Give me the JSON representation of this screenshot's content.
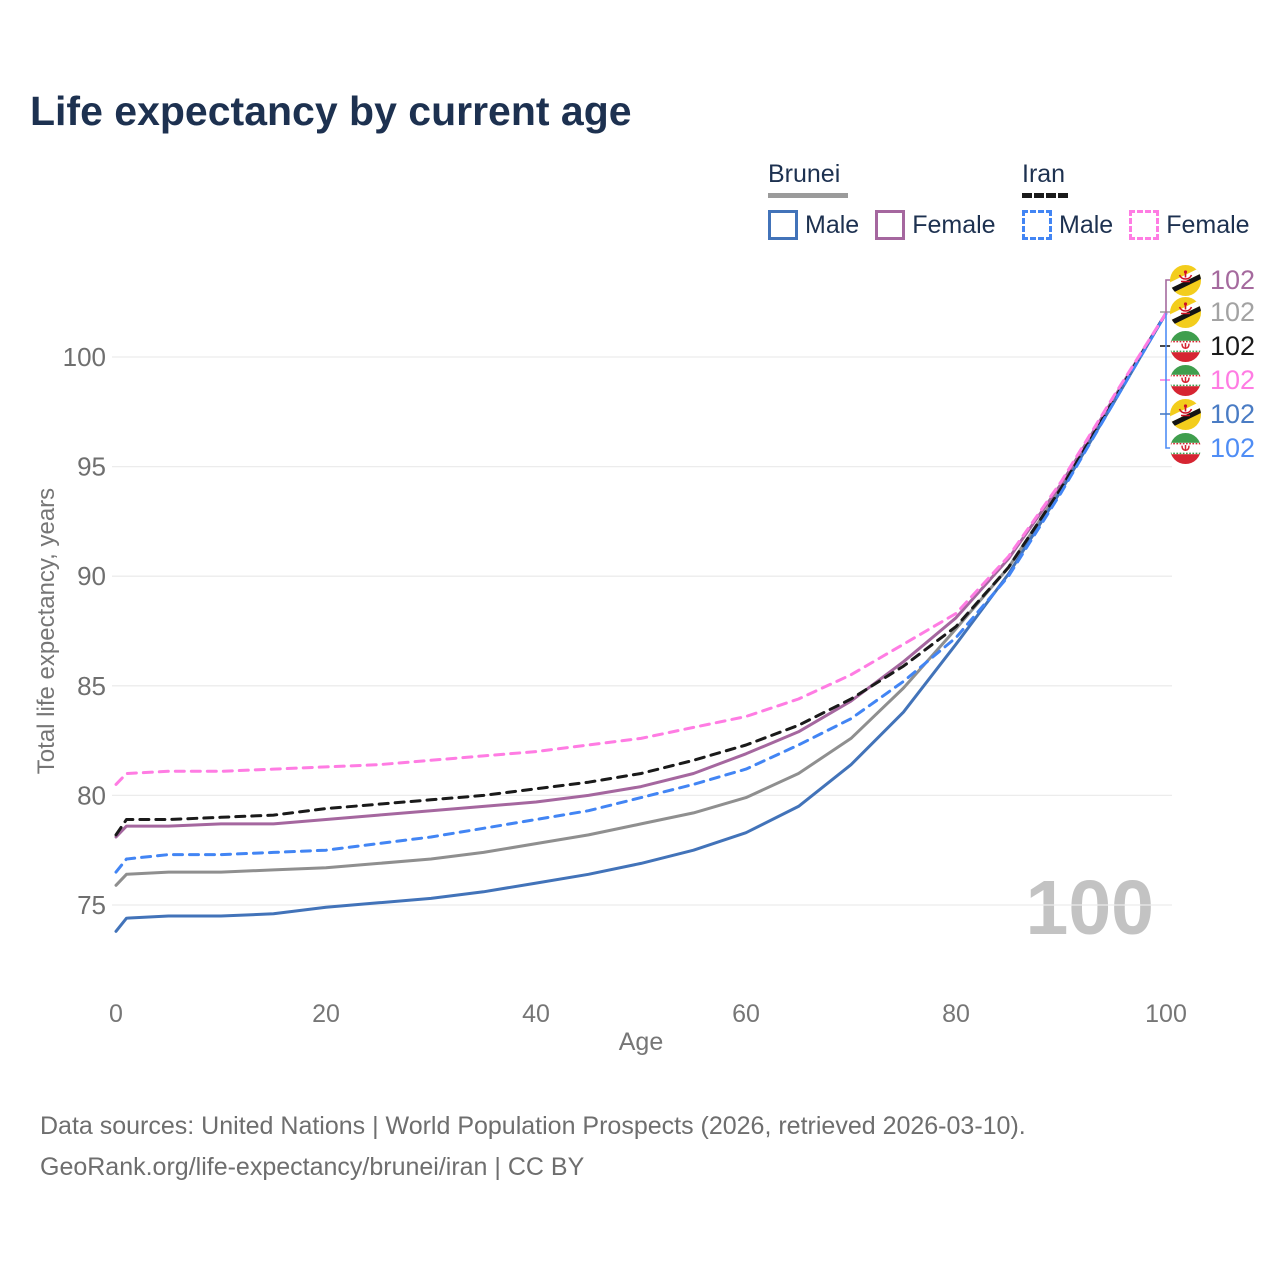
{
  "title": "Life expectancy by current age",
  "legend": {
    "groups": [
      {
        "label": "Brunei",
        "line_style": "solid",
        "underline_color": "#9b9b9b",
        "items": [
          {
            "label": "Male",
            "color": "#4273b9",
            "dashed": false
          },
          {
            "label": "Female",
            "color": "#a5679f",
            "dashed": false
          }
        ]
      },
      {
        "label": "Iran",
        "line_style": "dashed",
        "underline_color": "#1a1a1a",
        "items": [
          {
            "label": "Male",
            "color": "#4285f4",
            "dashed": true
          },
          {
            "label": "Female",
            "color": "#ff7ce3",
            "dashed": true
          }
        ]
      }
    ]
  },
  "watermark": "100",
  "right_labels": [
    {
      "flag": "brunei",
      "value": "102",
      "color": "#a56a9e"
    },
    {
      "flag": "brunei",
      "value": "102",
      "color": "#a3a3a3"
    },
    {
      "flag": "iran",
      "value": "102",
      "color": "#1a1a1a"
    },
    {
      "flag": "iran",
      "value": "102",
      "color": "#ff7ce3"
    },
    {
      "flag": "brunei",
      "value": "102",
      "color": "#4a7cc4"
    },
    {
      "flag": "iran",
      "value": "102",
      "color": "#4f8df5"
    }
  ],
  "chart_data": {
    "type": "line",
    "title": "Life expectancy by current age",
    "xlabel": "Age",
    "ylabel": "Total life expectancy, years",
    "xlim": [
      0,
      100
    ],
    "ylim": [
      73,
      103
    ],
    "xticks": [
      0,
      20,
      40,
      60,
      80,
      100
    ],
    "yticks": [
      75,
      80,
      85,
      90,
      95,
      100
    ],
    "grid": "horizontal",
    "legend_position": "top-right",
    "x": [
      0,
      1,
      5,
      10,
      15,
      20,
      25,
      30,
      35,
      40,
      45,
      50,
      55,
      60,
      65,
      70,
      75,
      80,
      85,
      90,
      95,
      100
    ],
    "series": [
      {
        "name": "Brunei All",
        "country": "Brunei",
        "sex": "all",
        "line": "solid",
        "color": "#8f8f8f",
        "values": [
          75.9,
          76.4,
          76.5,
          76.5,
          76.6,
          76.7,
          76.9,
          77.1,
          77.4,
          77.8,
          78.2,
          78.7,
          79.2,
          79.9,
          81.0,
          82.6,
          84.9,
          87.6,
          90.4,
          94.0,
          98.0,
          102
        ]
      },
      {
        "name": "Brunei Female",
        "country": "Brunei",
        "sex": "female",
        "line": "solid",
        "color": "#a5679f",
        "values": [
          78.1,
          78.6,
          78.6,
          78.7,
          78.7,
          78.9,
          79.1,
          79.3,
          79.5,
          79.7,
          80.0,
          80.4,
          81.0,
          81.9,
          82.9,
          84.3,
          86.1,
          88.1,
          90.8,
          94.2,
          98.1,
          102
        ]
      },
      {
        "name": "Brunei Male",
        "country": "Brunei",
        "sex": "male",
        "line": "solid",
        "color": "#4273b9",
        "values": [
          73.8,
          74.4,
          74.5,
          74.5,
          74.6,
          74.9,
          75.1,
          75.3,
          75.6,
          76.0,
          76.4,
          76.9,
          77.5,
          78.3,
          79.5,
          81.4,
          83.8,
          86.9,
          90.1,
          93.9,
          97.9,
          102
        ]
      },
      {
        "name": "Iran All",
        "country": "Iran",
        "sex": "all",
        "line": "dashed",
        "color": "#1a1a1a",
        "values": [
          78.2,
          78.9,
          78.9,
          79.0,
          79.1,
          79.4,
          79.6,
          79.8,
          80.0,
          80.3,
          80.6,
          81.0,
          81.6,
          82.3,
          83.2,
          84.4,
          85.9,
          87.7,
          90.4,
          94.0,
          98.0,
          102
        ]
      },
      {
        "name": "Iran Male",
        "country": "Iran",
        "sex": "male",
        "line": "dashed",
        "color": "#4285f4",
        "values": [
          76.5,
          77.1,
          77.3,
          77.3,
          77.4,
          77.5,
          77.8,
          78.1,
          78.5,
          78.9,
          79.3,
          79.9,
          80.5,
          81.2,
          82.3,
          83.5,
          85.2,
          87.2,
          90.0,
          93.8,
          97.9,
          102
        ]
      },
      {
        "name": "Iran Female",
        "country": "Iran",
        "sex": "female",
        "line": "dashed",
        "color": "#ff7ce3",
        "values": [
          80.5,
          81.0,
          81.1,
          81.1,
          81.2,
          81.3,
          81.4,
          81.6,
          81.8,
          82.0,
          82.3,
          82.6,
          83.1,
          83.6,
          84.4,
          85.5,
          86.9,
          88.3,
          90.9,
          94.3,
          98.2,
          102
        ]
      }
    ]
  },
  "footer": {
    "line1": "Data sources: United Nations | World Population Prospects (2026, retrieved 2026-03-10).",
    "line2": "GeoRank.org/life-expectancy/brunei/iran | CC BY"
  }
}
